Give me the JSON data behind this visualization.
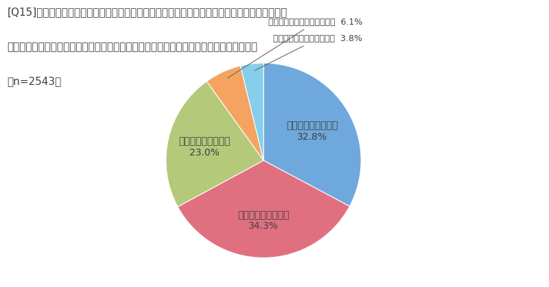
{
  "title_line1": "[Q15]大規模修繕工事が実施される際、パソコンやスマートフォンで工事内容や日程、住民向け",
  "title_line2": "のお知らせが、いつでも確認できるサービスがあったら、利用してみたいと思いますか？",
  "title_line3": "（n=2543）",
  "labels": [
    "ぜひ利用してみたい",
    "やや利用してみたい",
    "どちらともいえない",
    "あまり利用したいと思わない",
    "全く利用したいと思わない"
  ],
  "values": [
    32.8,
    34.3,
    23.0,
    6.1,
    3.8
  ],
  "colors": [
    "#6fa8dc",
    "#e07080",
    "#b5c97a",
    "#f4a460",
    "#87ceeb"
  ],
  "background_color": "#ffffff",
  "text_color": "#404040",
  "label_fontsize": 10,
  "title_fontsize": 11,
  "startangle": 90
}
